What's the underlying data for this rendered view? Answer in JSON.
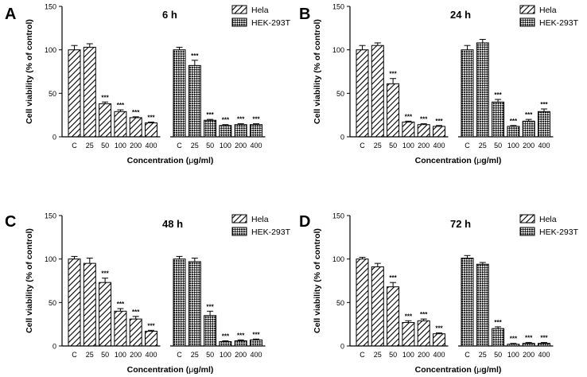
{
  "figure": {
    "series_names": [
      "Hela",
      "HEK-293T"
    ],
    "y_axis_label": "Cell viability (% of control)",
    "x_axis_label_prefix": "Concentration (",
    "x_axis_label_mu": "μ",
    "x_axis_label_suffix": "g/ml)"
  },
  "chart_data": [
    {
      "type": "bar",
      "panel": "A",
      "title": "6 h",
      "xlabel": "Concentration (μg/ml)",
      "ylabel": "Cell viability (% of control)",
      "ylim": [
        0,
        150
      ],
      "yticks": [
        "0",
        "50",
        "100",
        "150"
      ],
      "categories": [
        "C",
        "25",
        "50",
        "100",
        "200",
        "400"
      ],
      "series": [
        {
          "name": "Hela",
          "values": [
            100,
            103,
            38,
            29,
            22,
            16
          ],
          "errors": [
            5,
            4,
            2,
            2,
            1,
            1
          ],
          "sig": [
            "",
            "",
            "***",
            "***",
            "***",
            "***"
          ]
        },
        {
          "name": "HEK-293T",
          "values": [
            100,
            82,
            19,
            13,
            14,
            14
          ],
          "errors": [
            3,
            6,
            1,
            1,
            1,
            1
          ],
          "sig": [
            "",
            "***",
            "***",
            "***",
            "***",
            "***"
          ]
        }
      ]
    },
    {
      "type": "bar",
      "panel": "B",
      "title": "24 h",
      "xlabel": "Concentration (μg/ml)",
      "ylabel": "Cell viability (% of control)",
      "ylim": [
        0,
        150
      ],
      "yticks": [
        "0",
        "50",
        "100",
        "150"
      ],
      "categories": [
        "C",
        "25",
        "50",
        "100",
        "200",
        "400"
      ],
      "series": [
        {
          "name": "Hela",
          "values": [
            100,
            105,
            61,
            17,
            14,
            12
          ],
          "errors": [
            5,
            3,
            6,
            1,
            1,
            1
          ],
          "sig": [
            "",
            "",
            "***",
            "***",
            "***",
            "***"
          ]
        },
        {
          "name": "HEK-293T",
          "values": [
            100,
            108,
            40,
            12,
            18,
            29
          ],
          "errors": [
            5,
            4,
            3,
            1,
            2,
            3
          ],
          "sig": [
            "",
            "",
            "***",
            "***",
            "***",
            "***"
          ]
        }
      ]
    },
    {
      "type": "bar",
      "panel": "C",
      "title": "48 h",
      "xlabel": "Concentration (μg/ml)",
      "ylabel": "Cell viability (% of control)",
      "ylim": [
        0,
        150
      ],
      "yticks": [
        "0",
        "50",
        "100",
        "150"
      ],
      "categories": [
        "C",
        "25",
        "50",
        "100",
        "200",
        "400"
      ],
      "series": [
        {
          "name": "Hela",
          "values": [
            100,
            95,
            73,
            40,
            31,
            17
          ],
          "errors": [
            3,
            6,
            5,
            3,
            3,
            1
          ],
          "sig": [
            "",
            "",
            "***",
            "***",
            "***",
            "***"
          ]
        },
        {
          "name": "HEK-293T",
          "values": [
            100,
            97,
            35,
            5,
            6,
            7
          ],
          "errors": [
            3,
            4,
            5,
            1,
            1,
            1
          ],
          "sig": [
            "",
            "",
            "***",
            "***",
            "***",
            "***"
          ]
        }
      ]
    },
    {
      "type": "bar",
      "panel": "D",
      "title": "72 h",
      "xlabel": "Concentration (μg/ml)",
      "ylabel": "Cell viability (% of control)",
      "ylim": [
        0,
        150
      ],
      "yticks": [
        "0",
        "50",
        "100",
        "150"
      ],
      "categories": [
        "C",
        "25",
        "50",
        "100",
        "200",
        "400"
      ],
      "series": [
        {
          "name": "Hela",
          "values": [
            100,
            91,
            68,
            27,
            29,
            14
          ],
          "errors": [
            2,
            4,
            5,
            2,
            2,
            1
          ],
          "sig": [
            "",
            "",
            "***",
            "***",
            "***",
            "***"
          ]
        },
        {
          "name": "HEK-293T",
          "values": [
            101,
            94,
            20,
            2,
            3,
            3
          ],
          "errors": [
            3,
            2,
            2,
            1,
            1,
            1
          ],
          "sig": [
            "",
            "",
            "***",
            "***",
            "***",
            "***"
          ]
        }
      ]
    }
  ]
}
